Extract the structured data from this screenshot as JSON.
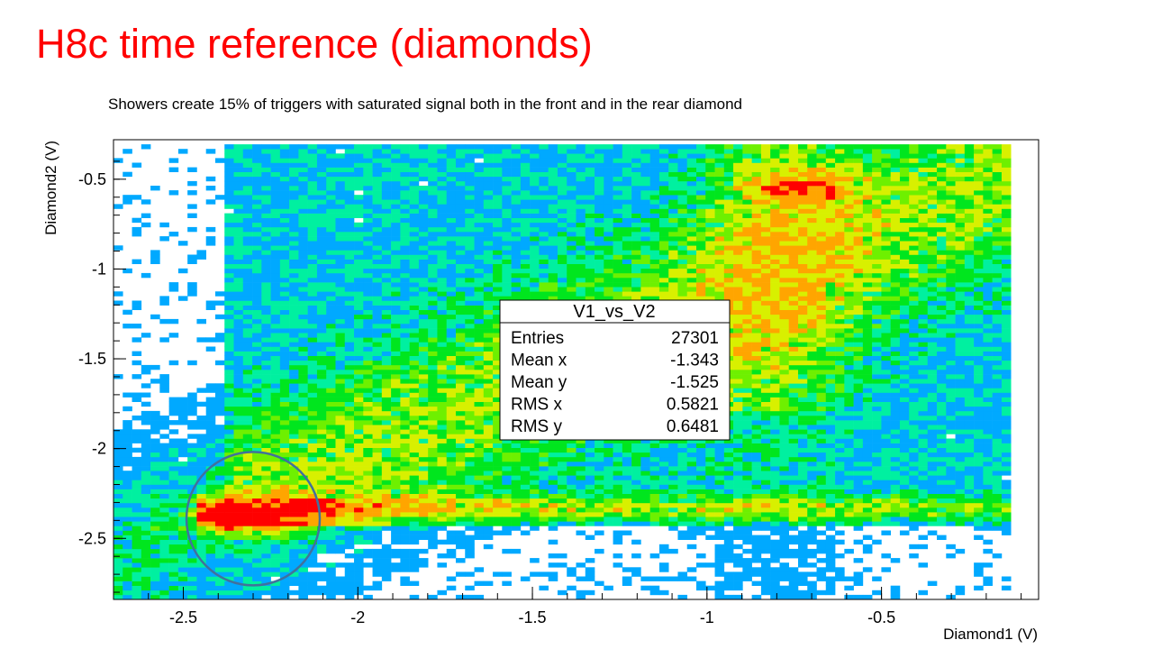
{
  "slide": {
    "title": "H8c time reference (diamonds)",
    "subtitle": "Showers create 15% of triggers with saturated signal both in the front and in the rear diamond"
  },
  "chart_data": {
    "type": "heatmap",
    "title": "",
    "xlabel": "Diamond1 (V)",
    "ylabel": "Diamond2 (V)",
    "xlim": [
      -2.7,
      -0.05
    ],
    "ylim": [
      -2.84,
      -0.28
    ],
    "x_ticks": [
      -2.5,
      -2,
      -1.5,
      -1,
      -0.5
    ],
    "x_tick_labels": [
      "-2.5",
      "-2",
      "-1.5",
      "-1",
      "-0.5"
    ],
    "y_ticks": [
      -2.5,
      -2,
      -1.5,
      -1,
      -0.5
    ],
    "y_tick_labels": [
      "-2.5",
      "-2",
      "-1.5",
      "-1",
      "-0.5"
    ],
    "bins": {
      "nx": 100,
      "ny": 100
    },
    "colormap": [
      "#00a9ff",
      "#00f0a0",
      "#00e61e",
      "#6ef000",
      "#d8f000",
      "#ffa500",
      "#ff0000"
    ],
    "hotspots": [
      {
        "label": "saturated-showers",
        "x": -2.36,
        "y": -2.38,
        "level": "max"
      },
      {
        "label": "diagonal-band",
        "x": -1.4,
        "y": -1.35,
        "level": "medium"
      },
      {
        "label": "upper-right-cluster",
        "x": -0.72,
        "y": -0.55,
        "level": "high"
      }
    ],
    "annotation_circle": {
      "center_x": -2.3,
      "center_y": -2.39
    },
    "stats_box": {
      "title": "V1_vs_V2",
      "rows": [
        {
          "label": "Entries",
          "value": "27301"
        },
        {
          "label": "Mean x",
          "value": "-1.343"
        },
        {
          "label": "Mean y",
          "value": "-1.525"
        },
        {
          "label": "RMS x",
          "value": "0.5821"
        },
        {
          "label": "RMS y",
          "value": "0.6481"
        }
      ]
    },
    "grid": false,
    "legend": "none"
  }
}
